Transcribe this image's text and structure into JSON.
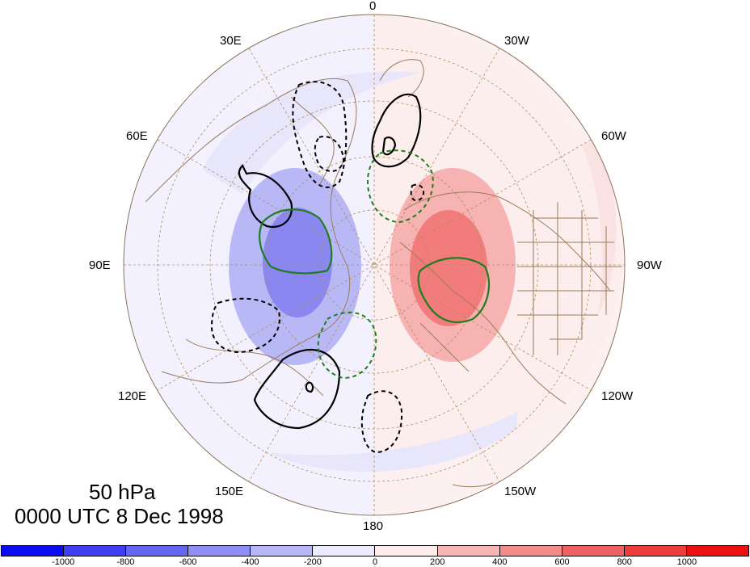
{
  "map": {
    "projection": "north polar stereographic",
    "longitude_labels": [
      "0",
      "30W",
      "60W",
      "90W",
      "120W",
      "150W",
      "180",
      "150E",
      "120E",
      "90E",
      "60E",
      "30E"
    ],
    "level_label": "50 hPa",
    "time_label": "0000 UTC 8 Dec 1998",
    "colors": {
      "ocean_land_base": "#f3f1ff",
      "negative_strong": "#8a88f0",
      "negative_weak": "#b9b8f6",
      "positive_weak": "#f7b2b2",
      "positive_strong": "#f27b7b",
      "coastline": "#9b7b5a",
      "grid": "#b08d5a",
      "contour_black": "#000000",
      "contour_green": "#1e7d1e"
    }
  },
  "colorbar": {
    "tick_labels": [
      "-1000",
      "-800",
      "-600",
      "-400",
      "-200",
      "0",
      "200",
      "400",
      "600",
      "800",
      "1000"
    ],
    "colors": [
      "#0c0cf2",
      "#3f3ef2",
      "#6766f4",
      "#8f8ef4",
      "#b7b6f6",
      "#ecebfd",
      "#fdeceb",
      "#f7b5b5",
      "#f58c8c",
      "#f06161",
      "#ef3d3d",
      "#ed1010"
    ]
  }
}
